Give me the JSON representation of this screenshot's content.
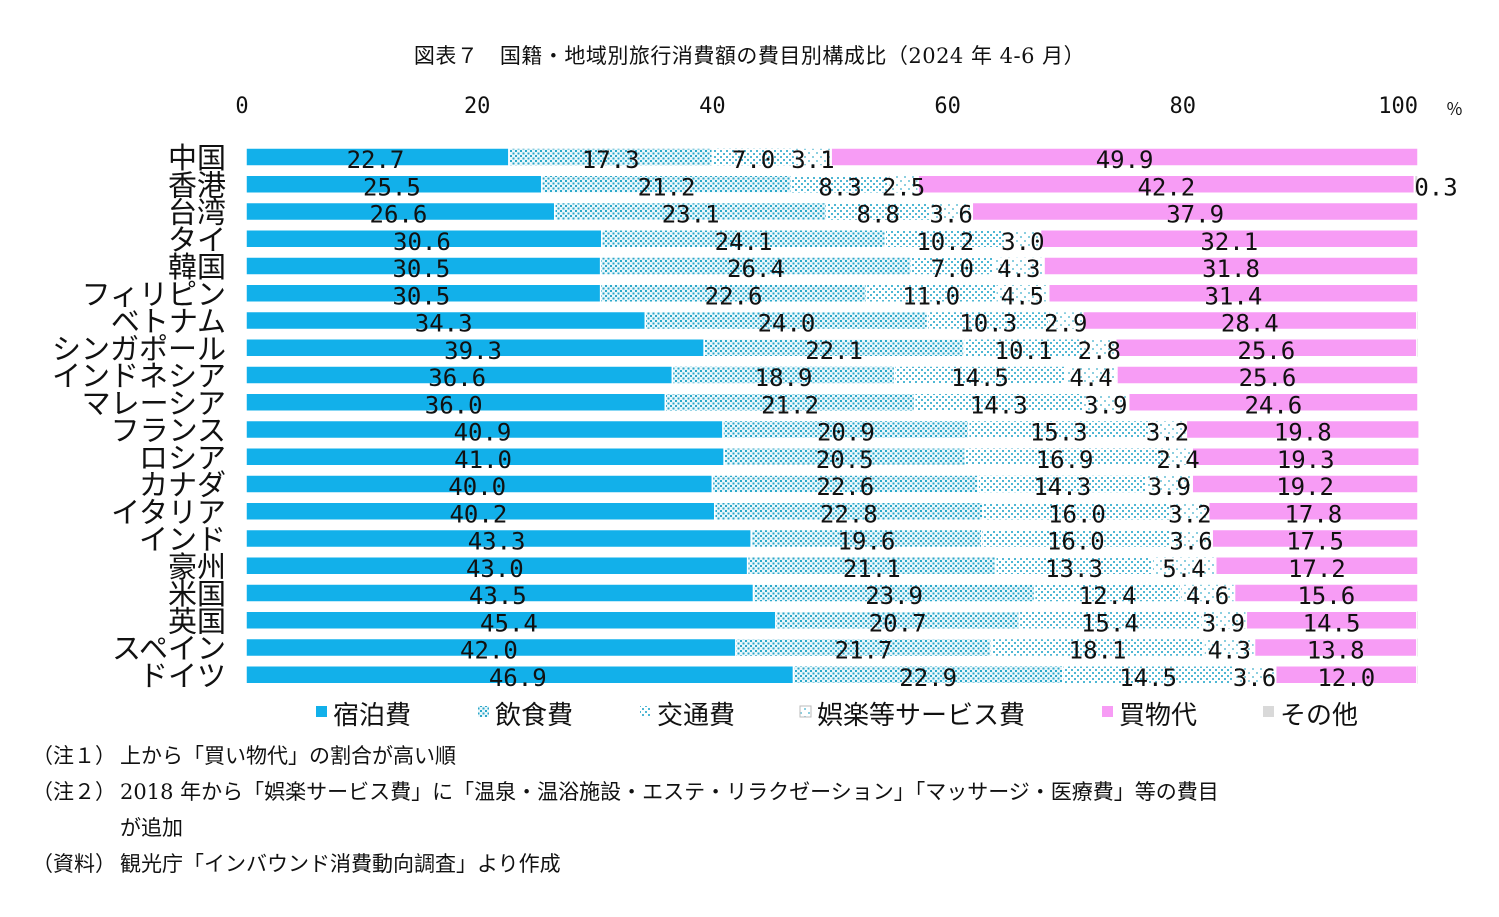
{
  "title": "図表７　国籍・地域別旅行消費額の費目別構成比（2024 年 4-6 月）",
  "notes": [
    {
      "tag": "（注１）",
      "text": "上から「買い物代」の割合が高い順"
    },
    {
      "tag": "（注２）",
      "text": "2018 年から「娯楽サービス費」に「温泉・温浴施設・エステ・リラクゼーション」「マッサージ・医療費」等の費目",
      "cont": "が追加"
    },
    {
      "tag": "（資料）",
      "text": "観光庁「インバウンド消費動向調査」より作成"
    }
  ],
  "chart_data": {
    "type": "stacked-bar-horizontal",
    "title": "図表７　国籍・地域別旅行消費額の費目別構成比（2024 年 4-6 月）",
    "x_ticks": [
      "0",
      "20",
      "40",
      "60",
      "80",
      "100"
    ],
    "x_unit": "％",
    "xlim": [
      0,
      100
    ],
    "legend_position": "bottom",
    "categories": [
      "中国",
      "香港",
      "台湾",
      "タイ",
      "韓国",
      "フィリピン",
      "ベトナム",
      "シンガポール",
      "インドネシア",
      "マレーシア",
      "フランス",
      "ロシア",
      "カナダ",
      "イタリア",
      "インド",
      "豪州",
      "米国",
      "英国",
      "スペイン",
      "ドイツ"
    ],
    "series": [
      {
        "name": "宿泊費",
        "color": "#12b0ea",
        "pattern": "solid",
        "values": [
          22.7,
          25.5,
          26.6,
          30.6,
          30.5,
          30.5,
          34.3,
          39.3,
          36.6,
          36.0,
          40.9,
          41.0,
          40.0,
          40.2,
          43.3,
          43.0,
          43.5,
          45.4,
          42.0,
          46.9
        ],
        "labels": [
          "22.7",
          "25.5",
          "26.6",
          "30.6",
          "30.5",
          "30.5",
          "34.3",
          "39.3",
          "36.6",
          "36.0",
          "40.9",
          "41.0",
          "40.0",
          "40.2",
          "43.3",
          "43.0",
          "43.5",
          "45.4",
          "42.0",
          "46.9"
        ]
      },
      {
        "name": "飲食費",
        "color": "#3fb6cf",
        "pattern": "dense-dots",
        "values": [
          17.3,
          21.2,
          23.1,
          24.1,
          26.4,
          22.6,
          24.0,
          22.1,
          18.9,
          21.2,
          20.9,
          20.5,
          22.6,
          22.8,
          19.6,
          21.1,
          23.9,
          20.7,
          21.7,
          22.9
        ],
        "labels": [
          "17.3",
          "21.2",
          "23.1",
          "24.1",
          "26.4",
          "22.6",
          "24.0",
          "22.1",
          "18.9",
          "21.2",
          "20.9",
          "20.5",
          "22.6",
          "22.8",
          "19.6",
          "21.1",
          "23.9",
          "20.7",
          "21.7",
          "22.9"
        ]
      },
      {
        "name": "交通費",
        "color": "#7fcde0",
        "pattern": "light-dots",
        "values": [
          7.0,
          8.3,
          8.8,
          10.2,
          7.0,
          11.0,
          10.3,
          10.1,
          14.5,
          14.3,
          15.3,
          16.9,
          14.3,
          16.0,
          16.0,
          13.3,
          12.4,
          15.4,
          18.1,
          14.5
        ],
        "labels": [
          "7.0",
          "8.3",
          "8.8",
          "10.2",
          "7.0",
          "11.0",
          "10.3",
          "10.1",
          "14.5",
          "14.3",
          "15.3",
          "16.9",
          "14.3",
          "16.0",
          "16.0",
          "13.3",
          "12.4",
          "15.4",
          "18.1",
          "14.5"
        ]
      },
      {
        "name": "娯楽等サービス費",
        "color": "#b8e4ee",
        "pattern": "sparse-dots",
        "values": [
          3.1,
          2.5,
          3.6,
          3.0,
          4.3,
          4.5,
          2.9,
          2.8,
          4.4,
          3.9,
          3.2,
          2.4,
          3.9,
          3.2,
          3.6,
          5.4,
          4.6,
          3.9,
          4.3,
          3.6
        ],
        "labels": [
          "3.1",
          "2.5",
          "3.6",
          "3.0",
          "4.3",
          "4.5",
          "2.9",
          "2.8",
          "4.4",
          "3.9",
          "3.2",
          "2.4",
          "3.9",
          "3.2",
          "3.6",
          "5.4",
          "4.6",
          "3.9",
          "4.3",
          "3.6"
        ]
      },
      {
        "name": "買物代",
        "color": "#f79cf5",
        "pattern": "solid",
        "values": [
          49.9,
          42.2,
          37.9,
          32.1,
          31.8,
          31.4,
          28.4,
          25.6,
          25.6,
          24.6,
          19.8,
          19.3,
          19.2,
          17.8,
          17.5,
          17.2,
          15.6,
          14.5,
          13.8,
          12.0
        ],
        "labels": [
          "49.9",
          "42.2",
          "37.9",
          "32.1",
          "31.8",
          "31.4",
          "28.4",
          "25.6",
          "25.6",
          "24.6",
          "19.8",
          "19.3",
          "19.2",
          "17.8",
          "17.5",
          "17.2",
          "15.6",
          "14.5",
          "13.8",
          "12.0"
        ]
      },
      {
        "name": "その他",
        "color": "#d9d9d9",
        "pattern": "solid",
        "values": [
          0.0,
          0.3,
          0,
          0,
          0,
          0,
          0,
          0,
          0,
          0,
          0,
          0,
          0,
          0,
          0,
          0,
          0,
          0,
          0,
          0
        ],
        "labels": [
          "",
          "0.3",
          "",
          "",
          "",
          "",
          "",
          "",
          "",
          "",
          "",
          "",
          "",
          "",
          "",
          "",
          "",
          "",
          "",
          ""
        ]
      }
    ]
  }
}
